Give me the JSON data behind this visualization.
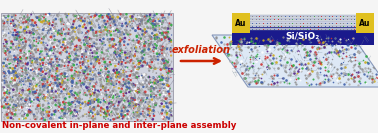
{
  "bg_color": "#f5f5f5",
  "left_bg": "#d0d4e0",
  "arrow_text": "exfoliation",
  "arrow_color": "#cc2200",
  "bottom_label": "Non-covalent in-plane and inter-plane assembly",
  "bottom_label_color": "#cc0000",
  "si_sio2_color": "#1a1a8c",
  "si_sio2_label": "Si/SiO₂",
  "au_color": "#e0c020",
  "au_label": "Au",
  "title_fontsize": 6.2,
  "arrow_fontsize": 7.0,
  "mol_colors": [
    "#909090",
    "#b0b0b0",
    "#4060aa",
    "#cc3333",
    "#33aa44",
    "#ccaa22",
    "#ffffff",
    "#552288"
  ],
  "mol_weights": [
    0.28,
    0.22,
    0.14,
    0.1,
    0.1,
    0.06,
    0.05,
    0.05
  ]
}
